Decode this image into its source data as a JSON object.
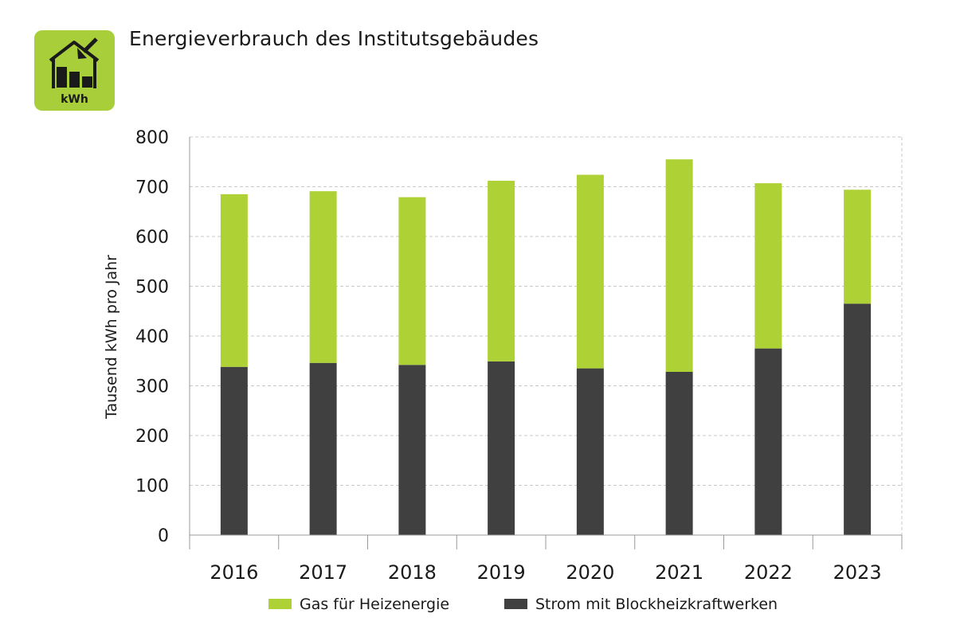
{
  "header": {
    "title": "Energieverbrauch des Institutsgebäudes",
    "logo_text": "kWh",
    "logo_icon": "house-bar-chart-icon"
  },
  "colors": {
    "gas": "#aed136",
    "strom": "#404040",
    "logo_bg": "#a8cf3a",
    "grid": "#c8c8c8",
    "axis": "#999999"
  },
  "chart_data": {
    "type": "bar",
    "stacked": true,
    "categories": [
      "2016",
      "2017",
      "2018",
      "2019",
      "2020",
      "2021",
      "2022",
      "2023"
    ],
    "series": [
      {
        "name": "Strom mit Blockheizkraftwerken",
        "values": [
          338,
          346,
          342,
          349,
          335,
          328,
          375,
          465
        ]
      },
      {
        "name": "Gas für Heizenergie",
        "values": [
          347,
          345,
          337,
          363,
          389,
          427,
          332,
          229
        ]
      }
    ],
    "title": "Energieverbrauch des Institutsgebäudes",
    "xlabel": "",
    "ylabel": "Tausend kWh pro Jahr",
    "ylim": [
      0,
      800
    ],
    "yticks": [
      "0",
      "100",
      "200",
      "300",
      "400",
      "500",
      "600",
      "700",
      "800"
    ],
    "grid": true,
    "legend": {
      "position": "bottom",
      "entries": [
        "Gas für Heizenergie",
        "Strom mit Blockheizkraftwerken"
      ]
    }
  }
}
